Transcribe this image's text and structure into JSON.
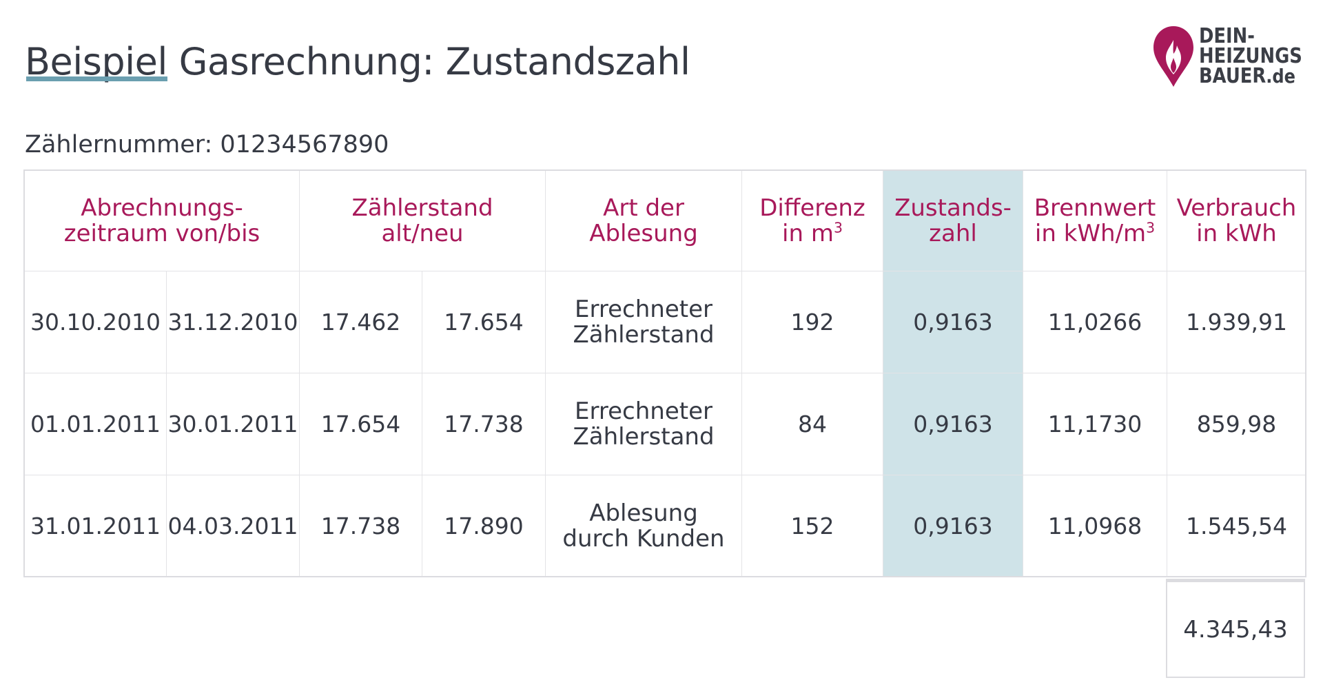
{
  "header": {
    "title": "Beispiel Gasrechnung: Zustandszahl"
  },
  "logo": {
    "line1": "DEIN-",
    "line2": "HEIZUNGS",
    "line3": "BAUER",
    "tld": ".de",
    "brand_color": "#a8195a",
    "icon": "flame-drop-icon"
  },
  "meter": {
    "label": "Zählernummer: 01234567890"
  },
  "colors": {
    "accent": "#a8195a",
    "highlight": "#cfe3e8",
    "underline": "#6b9fb0"
  },
  "table": {
    "headers": {
      "period": [
        "Abrechnungs-",
        "zeitraum von/bis"
      ],
      "meter_reading": [
        "Zählerstand",
        "alt/neu"
      ],
      "reading_type": [
        "Art der",
        "Ablesung"
      ],
      "difference": [
        "Differenz",
        "in m",
        "3"
      ],
      "zustandszahl": [
        "Zustands-",
        "zahl"
      ],
      "calorific": [
        "Brennwert",
        "in kWh/m",
        "3"
      ],
      "consumption": [
        "Verbrauch",
        "in kWh"
      ]
    },
    "rows": [
      {
        "from": "30.10.2010",
        "to": "31.12.2010",
        "old": "17.462",
        "new": "17.654",
        "type_line1": "Errechneter",
        "type_line2": "Zählerstand",
        "diff": "192",
        "z": "0,9163",
        "brennwert": "11,0266",
        "kwh": "1.939,91"
      },
      {
        "from": "01.01.2011",
        "to": "30.01.2011",
        "old": "17.654",
        "new": "17.738",
        "type_line1": "Errechneter",
        "type_line2": "Zählerstand",
        "diff": "84",
        "z": "0,9163",
        "brennwert": "11,1730",
        "kwh": "859,98"
      },
      {
        "from": "31.01.2011",
        "to": "04.03.2011",
        "old": "17.738",
        "new": "17.890",
        "type_line1": "Ablesung",
        "type_line2": "durch Kunden",
        "diff": "152",
        "z": "0,9163",
        "brennwert": "11,0968",
        "kwh": "1.545,54"
      }
    ],
    "total": "4.345,43"
  }
}
